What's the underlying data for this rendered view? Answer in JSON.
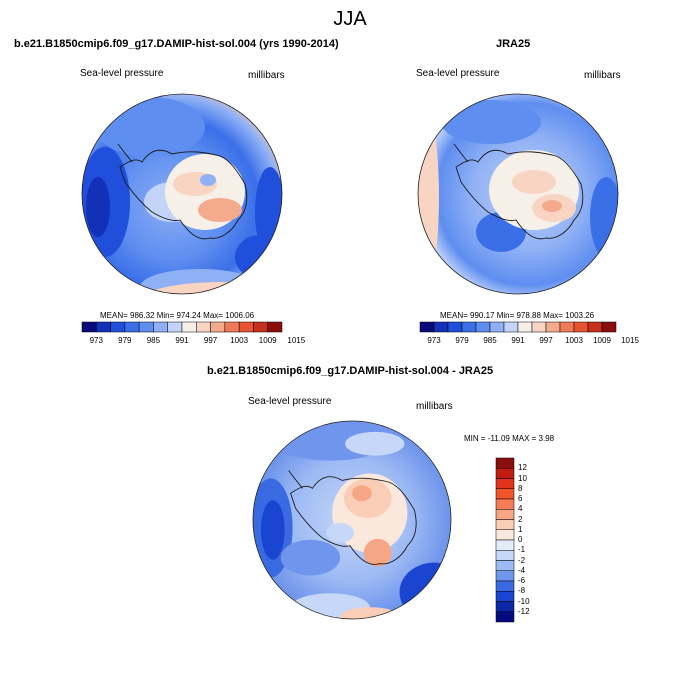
{
  "title": "JJA",
  "panels": [
    {
      "title": "b.e21.B1850cmip6.f09_g17.DAMIP-hist-sol.004 (yrs 1990-2014)",
      "variable": "Sea-level pressure",
      "units": "millibars",
      "stats": {
        "mean": "986.32",
        "min": "974.24",
        "max": "1006.06"
      },
      "stats_text": "MEAN= 986.32   Min= 974.24   Max= 1006.06"
    },
    {
      "title": "JRA25",
      "variable": "Sea-level pressure",
      "units": "millibars",
      "stats": {
        "mean": "990.17",
        "min": "978.88",
        "max": "1003.26"
      },
      "stats_text": "MEAN= 990.17   Min= 978.88   Max= 1003.26"
    },
    {
      "title": "b.e21.B1850cmip6.f09_g17.DAMIP-hist-sol.004 - JRA25",
      "variable": "Sea-level pressure",
      "units": "millibars",
      "stats": {
        "min": "-11.09",
        "max": "3.98"
      },
      "stats_text": "MIN = -11.09 MAX =   3.98"
    }
  ],
  "colorbar_abs": {
    "labels": [
      "973",
      "979",
      "985",
      "991",
      "997",
      "1003",
      "1009",
      "1015"
    ],
    "colors": [
      "#0a0a7a",
      "#1230b8",
      "#1f4fdb",
      "#3a6fe8",
      "#5e8ef0",
      "#8fb0f5",
      "#c2d4fa",
      "#f6f0e8",
      "#f8d4c2",
      "#f4ab8d",
      "#f07a58",
      "#e85432",
      "#c8301e",
      "#8a0e0e"
    ]
  },
  "colorbar_diff": {
    "labels": [
      "12",
      "10",
      "8",
      "6",
      "4",
      "2",
      "1",
      "0",
      "-1",
      "-2",
      "-4",
      "-6",
      "-8",
      "-10",
      "-12"
    ],
    "colors": [
      "#8a0e0e",
      "#c01c10",
      "#e0351a",
      "#f0562c",
      "#f47d55",
      "#f6a585",
      "#f9cdb6",
      "#fbe8dc",
      "#e4ecfa",
      "#c6d7f8",
      "#9dbaf4",
      "#6f95ec",
      "#3a6ae2",
      "#1a45d0",
      "#0b28a8",
      "#060a80"
    ]
  },
  "colors": {
    "land_outline": "#1a1a1a",
    "map_border": "#222222"
  }
}
